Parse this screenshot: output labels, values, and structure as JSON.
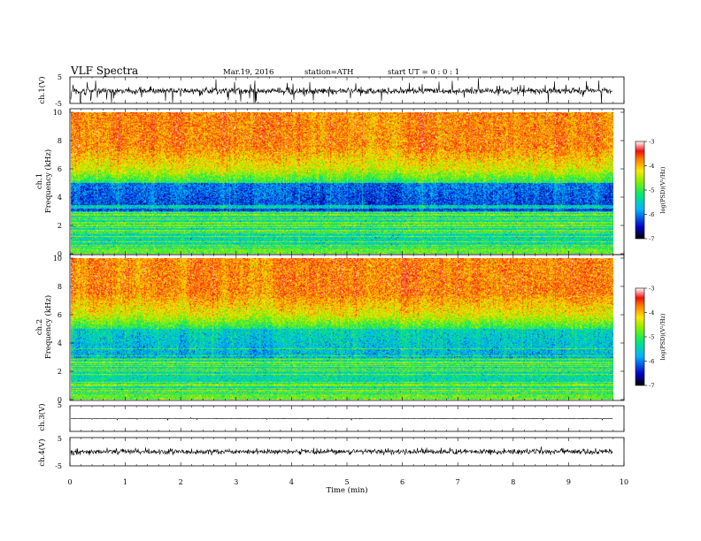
{
  "header": {
    "title": "VLF  Spectra",
    "date": "Mar.19, 2016",
    "station": "station=ATH",
    "start": "start  UT  =   0  :  0  :  1"
  },
  "chart_data": [
    {
      "type": "line",
      "panel": "ch1-waveform",
      "ylabel": "ch.1(V)",
      "ylim": [
        -5,
        5
      ],
      "yticks": [
        "5",
        "-5"
      ],
      "xlim": [
        0,
        10
      ],
      "baseline": -0.3
    },
    {
      "type": "heatmap",
      "panel": "ch1-spectrogram",
      "ylabel": "Frequency  (kHz)",
      "channel_label": "ch.1",
      "ylim": [
        0,
        10
      ],
      "yticks": [
        "0",
        "2",
        "4",
        "6",
        "8",
        "10"
      ],
      "xlim": [
        0,
        9.8
      ],
      "colorbar": {
        "label": "log(PSD)(V²/Hz)",
        "range": [
          -7,
          -3
        ],
        "ticks": [
          "-3",
          "-4",
          "-5",
          "-6",
          "-7"
        ]
      }
    },
    {
      "type": "heatmap",
      "panel": "ch2-spectrogram",
      "ylabel": "Frequency  (kHz)",
      "channel_label": "ch.2",
      "ylim": [
        0,
        10
      ],
      "yticks": [
        "0",
        "2",
        "4",
        "6",
        "8",
        "10"
      ],
      "xlim": [
        0,
        9.8
      ],
      "colorbar": {
        "label": "log(PSD)(V²/Hz)",
        "range": [
          -7,
          -3
        ],
        "ticks": [
          "-3",
          "-4",
          "-5",
          "-6",
          "-7"
        ]
      }
    },
    {
      "type": "line",
      "panel": "ch3-waveform",
      "ylabel": "ch.3(V)",
      "ylim": [
        -5,
        5
      ],
      "yticks": [
        "5"
      ],
      "xlim": [
        0,
        10
      ],
      "baseline": 0
    },
    {
      "type": "line",
      "panel": "ch4-waveform",
      "ylabel": "ch.4(V)",
      "ylim": [
        -5,
        5
      ],
      "yticks": [
        "5",
        "-5"
      ],
      "xlim": [
        0,
        10
      ],
      "baseline": 0
    }
  ],
  "xaxis": {
    "label": "Time  (min)",
    "ticks": [
      "0",
      "1",
      "2",
      "3",
      "4",
      "5",
      "6",
      "7",
      "8",
      "9",
      "10"
    ]
  }
}
